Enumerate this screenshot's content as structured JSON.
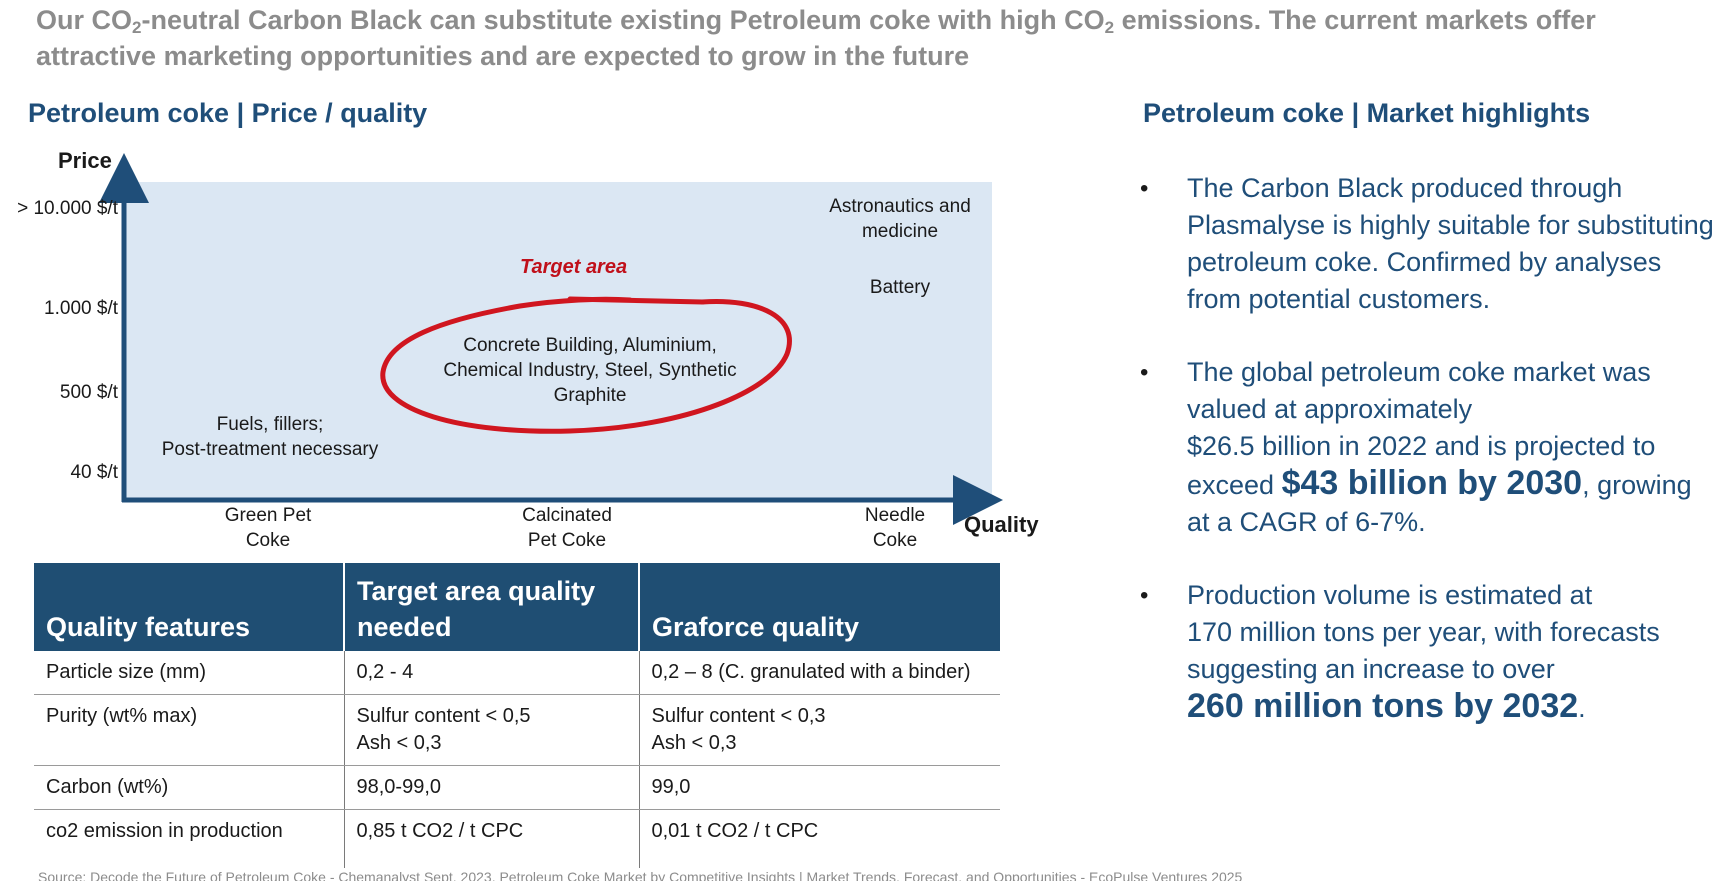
{
  "headline": {
    "part1": "Our CO",
    "sub1": "2",
    "part2": "-neutral Carbon Black can substitute existing Petroleum coke with high CO",
    "sub2": "2",
    "part3": " emissions. The current markets offer attractive marketing opportunities and are expected to grow in the future"
  },
  "left_title": "Petroleum coke | Price / quality",
  "right_title": "Petroleum coke | Market highlights",
  "chart": {
    "y_axis_label": "Price",
    "x_axis_label": "Quality",
    "y_ticks": [
      "> 10.000 $/t",
      "1.000 $/t",
      "500 $/t",
      "40 $/t"
    ],
    "x_ticks": [
      {
        "line1": "Green Pet",
        "line2": "Coke"
      },
      {
        "line1": "Calcinated",
        "line2": "Pet Coke"
      },
      {
        "line1": "Needle",
        "line2": "Coke"
      }
    ],
    "annotations": {
      "astronautics_1": "Astronautics and",
      "astronautics_2": "medicine",
      "battery": "Battery",
      "target_label": "Target area",
      "target_1": "Concrete Building,  Aluminium,",
      "target_2": "Chemical Industry, Steel, Synthetic",
      "target_3": "Graphite",
      "fuels_1": "Fuels, fillers;",
      "fuels_2": "Post-treatment necessary"
    },
    "colors": {
      "background": "#dbe7f3",
      "axis": "#1f4e79",
      "target_circle": "#d0161f"
    }
  },
  "table": {
    "headers": {
      "col1": "Quality features",
      "col2_line1": "Target area quality",
      "col2_line2": "needed",
      "col3": "Graforce quality"
    },
    "rows": [
      {
        "feature": "Particle size (mm)",
        "target1": "0,2 - 4",
        "target2": "",
        "graforce1": "0,2 – 8 (C. granulated with a binder)",
        "graforce2": ""
      },
      {
        "feature": "Purity (wt% max)",
        "target1": "Sulfur content < 0,5",
        "target2": "Ash <  0,3",
        "graforce1": "Sulfur content < 0,3",
        "graforce2": "Ash < 0,3"
      },
      {
        "feature": "Carbon (wt%)",
        "target1": "98,0-99,0",
        "target2": "",
        "graforce1": "99,0",
        "graforce2": ""
      },
      {
        "feature": "co2 emission in production",
        "target1": "0,85 t CO2 / t CPC",
        "target2": "",
        "graforce1": "0,01 t CO2 / t CPC",
        "graforce2": ""
      }
    ],
    "header_color": "#1f4e73"
  },
  "bullets": {
    "b1": "The Carbon Black produced through Plasmalyse is highly suitable for substituting petroleum coke. Confirmed by analyses from potential customers.",
    "b2_a": "The global petroleum coke market was valued at approximately",
    "b2_b": "$26.5 billion in 2022 and is projected to exceed ",
    "b2_big": "$43 billion by 2030",
    "b2_c": ", growing at a CAGR of 6-7%.",
    "b3_a": "Production volume is estimated at",
    "b3_b": "170 million tons per year, with forecasts suggesting an increase to over",
    "b3_big": "260 million tons by 2032",
    "b3_c": "."
  },
  "source": "Source: Decode the Future of Petroleum Coke - Chemanalyst Sept. 2023, Petroleum Coke Market by Competitive Insights | Market Trends, Forecast, and Opportunities - EcoPulse Ventures 2025"
}
